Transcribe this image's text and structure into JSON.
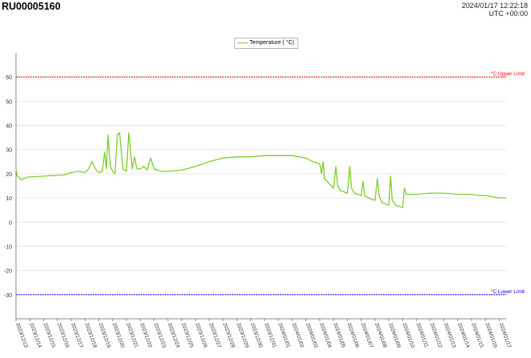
{
  "header": {
    "device_id": "RU00005160",
    "timestamp": "2024/01/17 12:22:18",
    "timezone": "UTC +00:00"
  },
  "colors": {
    "series": "#7ccf2c",
    "upper_limit": "#ff0000",
    "lower_limit": "#0000ff",
    "grid": "#e6e6e6"
  },
  "chart_data": {
    "type": "line",
    "ylim": [
      -40,
      70
    ],
    "yticks": [
      -30,
      -20,
      -10,
      0,
      10,
      20,
      30,
      40,
      50,
      60
    ],
    "grid": true,
    "legend_position": "top-center",
    "series": [
      {
        "name": "Temperature ( °C)",
        "x": [
          "2023/12/13 00:00",
          "2023/12/13 02:00",
          "2023/12/13 05:00",
          "2023/12/13 09:00",
          "2023/12/13 14:00",
          "2023/12/13 20:00",
          "2023/12/14 00:00",
          "2023/12/14 12:00",
          "2023/12/15 00:00",
          "2023/12/15 12:00",
          "2023/12/16 00:00",
          "2023/12/16 12:00",
          "2023/12/17 00:00",
          "2023/12/17 12:00",
          "2023/12/18 00:00",
          "2023/12/18 06:00",
          "2023/12/18 12:00",
          "2023/12/18 18:00",
          "2023/12/19 00:00",
          "2023/12/19 06:00",
          "2023/12/19 10:00",
          "2023/12/19 13:00",
          "2023/12/19 16:00",
          "2023/12/19 20:00",
          "2023/12/20 00:00",
          "2023/12/20 04:00",
          "2023/12/20 08:00",
          "2023/12/20 12:00",
          "2023/12/20 18:00",
          "2023/12/21 00:00",
          "2023/12/21 04:00",
          "2023/12/21 10:00",
          "2023/12/21 14:00",
          "2023/12/21 18:00",
          "2023/12/22 00:00",
          "2023/12/22 06:00",
          "2023/12/22 12:00",
          "2023/12/22 18:00",
          "2023/12/23 00:00",
          "2023/12/23 06:00",
          "2023/12/23 12:00",
          "2023/12/24 00:00",
          "2023/12/25 00:00",
          "2023/12/26 00:00",
          "2023/12/27 00:00",
          "2023/12/28 00:00",
          "2023/12/29 00:00",
          "2023/12/30 00:00",
          "2023/12/31 00:00",
          "2024/01/01 00:00",
          "2024/01/02 00:00",
          "2024/01/03 00:00",
          "2024/01/03 12:00",
          "2024/01/04 00:00",
          "2024/01/04 03:00",
          "2024/01/04 06:00",
          "2024/01/04 08:00",
          "2024/01/04 16:00",
          "2024/01/05 00:00",
          "2024/01/05 04:00",
          "2024/01/05 07:00",
          "2024/01/05 12:00",
          "2024/01/06 00:00",
          "2024/01/06 04:00",
          "2024/01/06 07:00",
          "2024/01/06 12:00",
          "2024/01/07 00:00",
          "2024/01/07 03:00",
          "2024/01/07 06:00",
          "2024/01/07 12:00",
          "2024/01/08 00:00",
          "2024/01/08 04:00",
          "2024/01/08 07:00",
          "2024/01/08 12:00",
          "2024/01/09 00:00",
          "2024/01/09 03:00",
          "2024/01/09 06:00",
          "2024/01/09 12:00",
          "2024/01/10 00:00",
          "2024/01/10 03:00",
          "2024/01/10 06:00",
          "2024/01/10 12:00",
          "2024/01/11 00:00",
          "2024/01/12 00:00",
          "2024/01/13 00:00",
          "2024/01/14 00:00",
          "2024/01/15 00:00",
          "2024/01/15 12:00",
          "2024/01/16 00:00",
          "2024/01/16 12:00",
          "2024/01/17 00:00",
          "2024/01/17 12:00"
        ],
        "y": [
          22,
          19,
          18.5,
          17.5,
          18,
          18.5,
          18.7,
          18.8,
          19,
          19.2,
          19.3,
          19.5,
          20.5,
          21,
          20.5,
          22,
          25,
          22,
          20.5,
          21,
          29,
          22,
          36,
          23,
          21,
          20,
          36,
          37,
          22,
          21,
          37,
          22,
          27,
          22,
          22,
          23,
          21.5,
          26.5,
          22,
          21.5,
          21,
          21,
          21.5,
          23,
          25,
          26.5,
          27,
          27,
          27.5,
          27.5,
          27.5,
          26.5,
          25,
          24,
          20,
          25,
          18,
          16,
          14,
          23,
          15,
          13,
          12,
          23,
          14,
          12,
          11,
          17,
          11,
          10,
          9,
          18,
          11,
          8,
          7,
          19,
          9,
          7,
          6,
          14,
          11.5,
          11.5,
          11.5,
          12,
          12,
          11.5,
          11.5,
          11,
          11,
          10.5,
          10,
          10
        ]
      }
    ],
    "x_tick_labels": [
      "2023/12/13",
      "2023/12/14",
      "2023/12/15",
      "2023/12/16",
      "2023/12/17",
      "2023/12/18",
      "2023/12/19",
      "2023/12/20",
      "2023/12/21",
      "2023/12/22",
      "2023/12/23",
      "2023/12/24",
      "2023/12/25",
      "2023/12/26",
      "2023/12/27",
      "2023/12/28",
      "2023/12/29",
      "2023/12/30",
      "2023/12/31",
      "2024/01/01",
      "2024/01/02",
      "2024/01/03",
      "2024/01/04",
      "2024/01/05",
      "2024/01/06",
      "2024/01/07",
      "2024/01/08",
      "2024/01/09",
      "2024/01/10",
      "2024/01/11",
      "2024/01/12",
      "2024/01/13",
      "2024/01/14",
      "2024/01/15",
      "2024/01/16",
      "2024/01/17"
    ],
    "thresholds": [
      {
        "label": "°C Upper Limit",
        "value": 60
      },
      {
        "label": "°C Lower Limit",
        "value": -30
      }
    ]
  }
}
